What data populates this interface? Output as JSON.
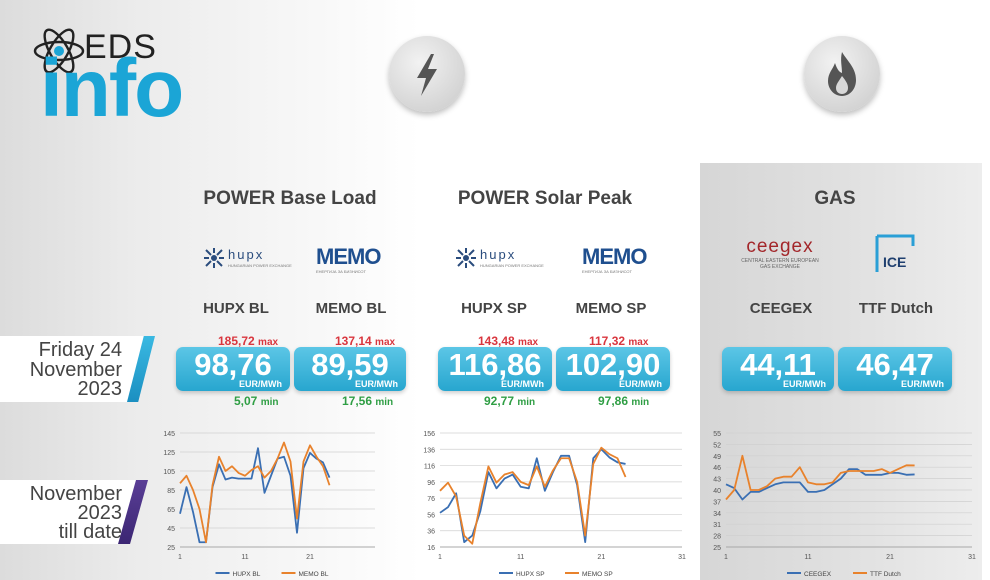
{
  "brand": {
    "top": "EDS",
    "main": "info"
  },
  "date_banner": {
    "line1": "Friday 24",
    "line2": "November",
    "line3": "2023"
  },
  "period_banner": {
    "line1": "November",
    "line2": "2023",
    "line3": "till date"
  },
  "sections": {
    "power_base": "POWER Base Load",
    "power_solar": "POWER Solar Peak",
    "gas": "GAS"
  },
  "logos": {
    "hupx": "hupx",
    "hupx_sub": "HUNGARIAN POWER EXCHANGE",
    "memo": "MEMO",
    "memo_sub": "ЕНЕРГИЈА ЗА БИЗНИСОТ",
    "ceegex": "ceegex",
    "ceegex_sub1": "CENTRAL EASTERN EUROPEAN",
    "ceegex_sub2": "GAS EXCHANGE",
    "ice": "ICE"
  },
  "markets": [
    {
      "name": "HUPX BL",
      "value": "98,76",
      "unit": "EUR/MWh",
      "max": "185,72",
      "max_label": "max",
      "min": "5,07",
      "min_label": "min"
    },
    {
      "name": "MEMO BL",
      "value": "89,59",
      "unit": "EUR/MWh",
      "max": "137,14",
      "max_label": "max",
      "min": "17,56",
      "min_label": "min"
    },
    {
      "name": "HUPX SP",
      "value": "116,86",
      "unit": "EUR/MWh",
      "max": "143,48",
      "max_label": "max",
      "min": "92,77",
      "min_label": "min"
    },
    {
      "name": "MEMO SP",
      "value": "102,90",
      "unit": "EUR/MWh",
      "max": "117,32",
      "max_label": "max",
      "min": "97,86",
      "min_label": "min"
    },
    {
      "name": "CEEGEX",
      "value": "44,11",
      "unit": "EUR/MWh"
    },
    {
      "name": "TTF Dutch",
      "value": "46,47",
      "unit": "EUR/MWh"
    }
  ],
  "colors": {
    "accent": "#1ba5d6",
    "series_blue": "#3a6fb3",
    "series_orange": "#e8822c",
    "max": "#d9363e",
    "min": "#2f9e44"
  },
  "chart_data": [
    {
      "type": "line",
      "x": [
        1,
        2,
        3,
        4,
        5,
        6,
        7,
        8,
        9,
        10,
        11,
        12,
        13,
        14,
        15,
        16,
        17,
        18,
        19,
        20,
        21,
        22,
        23,
        24
      ],
      "xticks": [
        "1",
        "11",
        "21"
      ],
      "yticks": [
        "25",
        "45",
        "65",
        "85",
        "105",
        "125",
        "145"
      ],
      "ylim": [
        25,
        145
      ],
      "xlim": [
        1,
        31
      ],
      "legend": "bottom",
      "grid": true,
      "series": [
        {
          "name": "HUPX BL",
          "values": [
            60,
            88,
            62,
            30,
            30,
            88,
            112,
            96,
            98,
            97,
            97,
            97,
            129,
            82,
            100,
            118,
            120,
            100,
            40,
            108,
            124,
            118,
            114,
            98
          ]
        },
        {
          "name": "MEMO BL",
          "values": [
            92,
            100,
            85,
            65,
            30,
            90,
            120,
            105,
            110,
            103,
            100,
            106,
            110,
            98,
            105,
            118,
            135,
            115,
            55,
            115,
            132,
            120,
            110,
            90
          ]
        }
      ]
    },
    {
      "type": "line",
      "x": [
        1,
        2,
        3,
        4,
        5,
        6,
        7,
        8,
        9,
        10,
        11,
        12,
        13,
        14,
        15,
        16,
        17,
        18,
        19,
        20,
        21,
        22,
        23,
        24
      ],
      "xticks": [
        "1",
        "11",
        "21",
        "31"
      ],
      "yticks": [
        "16",
        "36",
        "56",
        "76",
        "96",
        "116",
        "136",
        "156"
      ],
      "ylim": [
        16,
        156
      ],
      "xlim": [
        1,
        31
      ],
      "legend": "bottom",
      "grid": true,
      "series": [
        {
          "name": "HUPX SP",
          "values": [
            58,
            65,
            82,
            22,
            30,
            60,
            108,
            88,
            100,
            105,
            90,
            88,
            125,
            85,
            108,
            128,
            128,
            92,
            22,
            125,
            136,
            126,
            120,
            118
          ]
        },
        {
          "name": "MEMO SP",
          "values": [
            85,
            95,
            78,
            30,
            20,
            70,
            115,
            95,
            105,
            108,
            96,
            92,
            115,
            90,
            110,
            125,
            125,
            96,
            30,
            118,
            138,
            130,
            125,
            102
          ]
        }
      ]
    },
    {
      "type": "line",
      "x": [
        1,
        2,
        3,
        4,
        5,
        6,
        7,
        8,
        9,
        10,
        11,
        12,
        13,
        14,
        15,
        16,
        17,
        18,
        19,
        20,
        21,
        22,
        23,
        24
      ],
      "xticks": [
        "1",
        "11",
        "21",
        "31"
      ],
      "yticks": [
        "25",
        "28",
        "31",
        "34",
        "37",
        "40",
        "43",
        "46",
        "49",
        "52",
        "55"
      ],
      "ylim": [
        25,
        55
      ],
      "xlim": [
        1,
        31
      ],
      "legend": "bottom",
      "grid": true,
      "series": [
        {
          "name": "CEEGEX",
          "values": [
            41.5,
            40.5,
            37.5,
            39.5,
            39.5,
            40.5,
            41.5,
            42,
            42,
            42,
            39.5,
            39.5,
            40,
            41.5,
            43,
            45.5,
            45.5,
            44,
            44,
            44,
            44.5,
            44.5,
            44,
            44.1
          ]
        },
        {
          "name": "TTF Dutch",
          "values": [
            37.5,
            40,
            49,
            40,
            40,
            41,
            43,
            43.5,
            43.5,
            46,
            42,
            41.5,
            41.5,
            42,
            44.5,
            45,
            45,
            45,
            45,
            45.5,
            44.5,
            45.5,
            46.5,
            46.47
          ]
        }
      ]
    }
  ]
}
